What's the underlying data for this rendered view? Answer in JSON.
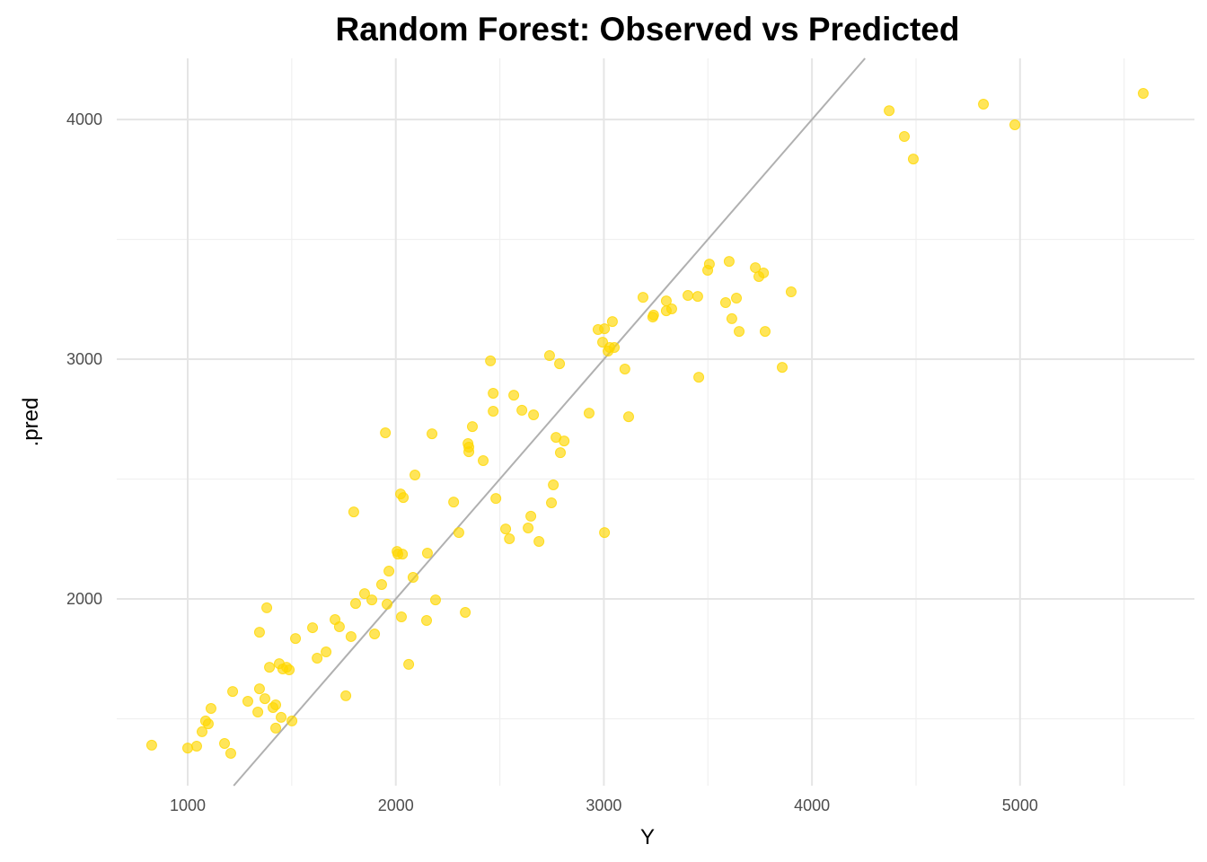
{
  "chart_data": {
    "type": "scatter",
    "title": "Random Forest: Observed vs Predicted",
    "xlabel": "Y",
    "ylabel": ".pred",
    "xlim": [
      659,
      5838
    ],
    "ylim": [
      1221,
      4255
    ],
    "x_ticks": [
      1000,
      2000,
      3000,
      4000,
      5000
    ],
    "y_ticks": [
      2000,
      3000,
      4000
    ],
    "x_tick_labels": [
      "1000",
      "2000",
      "3000",
      "4000",
      "5000"
    ],
    "y_tick_labels": [
      "2000",
      "3000",
      "4000"
    ],
    "grid": true,
    "point_color": "#FFD700",
    "reference_line": {
      "type": "identity",
      "slope": 1,
      "intercept": 0,
      "color": "#B0B0B0"
    },
    "points": [
      [
        827,
        1390
      ],
      [
        1000,
        1378
      ],
      [
        1043,
        1386
      ],
      [
        1069,
        1446
      ],
      [
        1086,
        1491
      ],
      [
        1099,
        1479
      ],
      [
        1112,
        1543
      ],
      [
        1177,
        1397
      ],
      [
        1207,
        1356
      ],
      [
        1216,
        1614
      ],
      [
        1289,
        1573
      ],
      [
        1337,
        1528
      ],
      [
        1345,
        1625
      ],
      [
        1345,
        1861
      ],
      [
        1371,
        1584
      ],
      [
        1380,
        1963
      ],
      [
        1393,
        1715
      ],
      [
        1410,
        1547
      ],
      [
        1423,
        1558
      ],
      [
        1423,
        1461
      ],
      [
        1440,
        1730
      ],
      [
        1449,
        1506
      ],
      [
        1457,
        1708
      ],
      [
        1475,
        1715
      ],
      [
        1488,
        1704
      ],
      [
        1501,
        1491
      ],
      [
        1518,
        1835
      ],
      [
        1600,
        1880
      ],
      [
        1622,
        1753
      ],
      [
        1665,
        1779
      ],
      [
        1708,
        1914
      ],
      [
        1729,
        1884
      ],
      [
        1760,
        1596
      ],
      [
        1785,
        1843
      ],
      [
        1798,
        2363
      ],
      [
        1807,
        1981
      ],
      [
        1850,
        2022
      ],
      [
        1885,
        1996
      ],
      [
        1898,
        1854
      ],
      [
        1932,
        2060
      ],
      [
        1950,
        2693
      ],
      [
        1958,
        1978
      ],
      [
        1967,
        2116
      ],
      [
        2006,
        2198
      ],
      [
        2010,
        2187
      ],
      [
        2023,
        2438
      ],
      [
        2027,
        1925
      ],
      [
        2032,
        2187
      ],
      [
        2036,
        2423
      ],
      [
        2062,
        1727
      ],
      [
        2083,
        2090
      ],
      [
        2092,
        2517
      ],
      [
        2152,
        2191
      ],
      [
        2148,
        1910
      ],
      [
        2174,
        2689
      ],
      [
        2191,
        1996
      ],
      [
        2278,
        2404
      ],
      [
        2303,
        2277
      ],
      [
        2334,
        1944
      ],
      [
        2347,
        2648
      ],
      [
        2351,
        2633
      ],
      [
        2351,
        2614
      ],
      [
        2368,
        2719
      ],
      [
        2420,
        2577
      ],
      [
        2455,
        2993
      ],
      [
        2468,
        2858
      ],
      [
        2468,
        2783
      ],
      [
        2481,
        2419
      ],
      [
        2528,
        2292
      ],
      [
        2546,
        2251
      ],
      [
        2567,
        2850
      ],
      [
        2606,
        2787
      ],
      [
        2636,
        2296
      ],
      [
        2649,
        2345
      ],
      [
        2662,
        2768
      ],
      [
        2688,
        2240
      ],
      [
        2748,
        2401
      ],
      [
        2757,
        2476
      ],
      [
        2739,
        3015
      ],
      [
        2770,
        2674
      ],
      [
        2787,
        2981
      ],
      [
        2791,
        2610
      ],
      [
        2809,
        2659
      ],
      [
        2929,
        2775
      ],
      [
        2972,
        3124
      ],
      [
        2994,
        3071
      ],
      [
        3003,
        2277
      ],
      [
        3003,
        3127
      ],
      [
        3020,
        3034
      ],
      [
        3028,
        3049
      ],
      [
        3050,
        3049
      ],
      [
        3041,
        3157
      ],
      [
        3101,
        2959
      ],
      [
        3119,
        2760
      ],
      [
        3188,
        3258
      ],
      [
        3235,
        3176
      ],
      [
        3239,
        3184
      ],
      [
        3300,
        3202
      ],
      [
        3300,
        3243
      ],
      [
        3326,
        3210
      ],
      [
        3404,
        3266
      ],
      [
        3451,
        3262
      ],
      [
        3456,
        2925
      ],
      [
        3499,
        3371
      ],
      [
        3507,
        3397
      ],
      [
        3585,
        3236
      ],
      [
        3602,
        3408
      ],
      [
        3615,
        3169
      ],
      [
        3637,
        3255
      ],
      [
        3650,
        3116
      ],
      [
        3728,
        3382
      ],
      [
        3745,
        3345
      ],
      [
        3767,
        3360
      ],
      [
        3775,
        3116
      ],
      [
        3857,
        2966
      ],
      [
        3900,
        3281
      ],
      [
        4371,
        4037
      ],
      [
        4444,
        3929
      ],
      [
        4487,
        3835
      ],
      [
        4824,
        4064
      ],
      [
        4975,
        3978
      ],
      [
        5592,
        4109
      ]
    ]
  }
}
